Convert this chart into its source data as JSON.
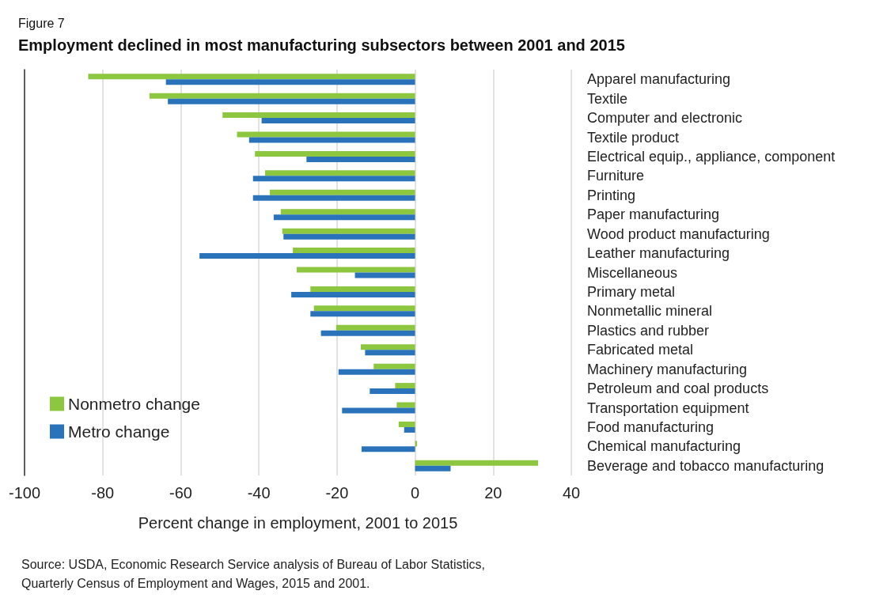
{
  "chart_data": {
    "type": "bar",
    "orientation": "horizontal",
    "subtitle": "Figure 7",
    "title": "Employment declined in most manufacturing subsectors between 2001 and 2015",
    "xlabel": "Percent change in employment, 2001 to 2015",
    "categories": [
      "Apparel manufacturing",
      "Textile",
      "Computer and electronic",
      "Textile product",
      "Electrical equip., appliance, component",
      "Furniture",
      "Printing",
      "Paper manufacturing",
      "Wood product manufacturing",
      "Leather manufacturing",
      "Miscellaneous",
      "Primary metal",
      "Nonmetallic mineral",
      "Plastics and rubber",
      "Fabricated metal",
      "Machinery manufacturing",
      "Petroleum and coal products",
      "Transportation equipment",
      "Food manufacturing",
      "Chemical manufacturing",
      "Beverage and tobacco manufacturing"
    ],
    "series": [
      {
        "name": "Nonmetro change",
        "color": "#8dc63f",
        "values": [
          -83.7,
          -68,
          -49.3,
          -45.6,
          -41,
          -38.4,
          -37.2,
          -34.4,
          -34,
          -31.3,
          -30.3,
          -26.8,
          -25.9,
          -20.2,
          -13.9,
          -10.6,
          -5.1,
          -4.7,
          -4.2,
          0.5,
          31.5
        ]
      },
      {
        "name": "Metro change",
        "color": "#2a72b9",
        "values": [
          -63.8,
          -63.3,
          -39.3,
          -42.5,
          -27.8,
          -41.5,
          -41.5,
          -36.2,
          -33.7,
          -55.2,
          -15.4,
          -31.7,
          -26.8,
          -24.1,
          -12.8,
          -19.6,
          -11.6,
          -18.7,
          -2.8,
          -13.7,
          9.1
        ]
      }
    ],
    "xlim": [
      -100,
      40
    ],
    "xticks": [
      -100,
      -80,
      -60,
      -40,
      -20,
      0,
      20,
      40
    ],
    "grid": "x",
    "legend": "left",
    "annotations": [
      "Source: USDA, Economic Research Service analysis of Bureau of Labor Statistics, Quarterly Census of Employment and Wages, 2015 and 2001."
    ]
  }
}
